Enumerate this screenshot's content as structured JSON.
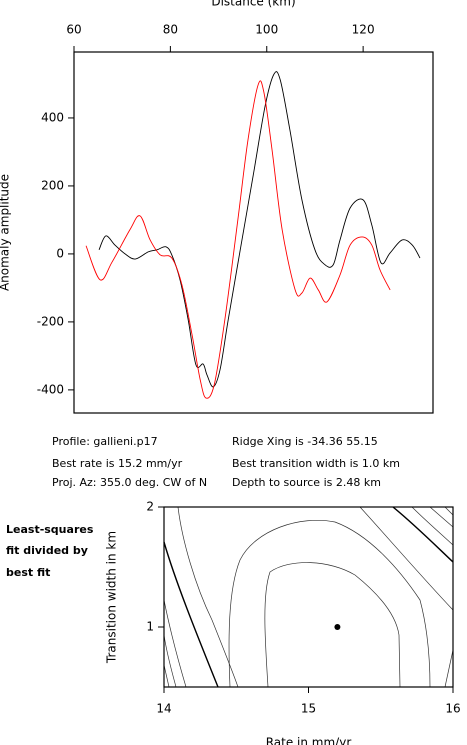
{
  "chart_data": [
    {
      "type": "line",
      "xlabel": "Distance (km)",
      "ylabel": "Anomaly amplitude",
      "xlim": [
        60,
        134.5
      ],
      "ylim": [
        -468,
        594
      ],
      "xticks": [
        60,
        80,
        100,
        120
      ],
      "yticks": [
        -400,
        -200,
        0,
        200,
        400
      ],
      "series": [
        {
          "color": "#000000",
          "x": [
            65.2,
            66.6,
            68.5,
            70.6,
            72.7,
            75.4,
            77.2,
            79.1,
            80.3,
            82,
            83.7,
            85.3,
            86.8,
            87.6,
            88.9,
            90.3,
            92,
            94.5,
            97.2,
            99.7,
            101.5,
            102.8,
            104.8,
            107.3,
            110,
            112.1,
            113.8,
            115.2,
            117.3,
            120,
            121.8,
            123.7,
            125.6,
            128.1,
            130.2,
            131.8
          ],
          "values": [
            12,
            53,
            26,
            0,
            -15,
            6,
            12,
            21,
            -3,
            -76,
            -194,
            -326,
            -324,
            -356,
            -391,
            -341,
            -194,
            12,
            232,
            438,
            529,
            512,
            365,
            159,
            12,
            -32,
            -32,
            41,
            135,
            159,
            85,
            -26,
            3,
            41,
            26,
            -12
          ]
        },
        {
          "color": "#ff0000",
          "x": [
            62.5,
            65.4,
            67.9,
            71.6,
            73.7,
            75.8,
            77.9,
            80.3,
            82.4,
            84.5,
            86.2,
            87.4,
            89.1,
            91.3,
            94,
            96.1,
            98.2,
            99.4,
            101.1,
            103.2,
            105.9,
            107.3,
            109,
            110.7,
            112.5,
            115.2,
            117.3,
            119.8,
            121.8,
            123.5,
            125.6
          ],
          "values": [
            24,
            -76,
            -24,
            71,
            112,
            41,
            -3,
            -12,
            -91,
            -238,
            -371,
            -424,
            -385,
            -194,
            100,
            335,
            497,
            476,
            306,
            71,
            -106,
            -115,
            -71,
            -106,
            -141,
            -62,
            26,
            50,
            26,
            -47,
            -106
          ]
        }
      ]
    },
    {
      "type": "scatter",
      "xlabel": "Rate in mm/yr",
      "ylabel": "Transition width in km",
      "xlim": [
        14,
        16
      ],
      "ylim": [
        0.5,
        2
      ],
      "xticks": [
        14,
        15,
        16
      ],
      "yticks": [
        1,
        2
      ],
      "series": [
        {
          "color": "#000000",
          "x": [
            15.2
          ],
          "values": [
            1
          ]
        }
      ]
    }
  ],
  "profile_info": [
    "Profile: gallieni.p17",
    "Ridge Xing is -34.36 55.15",
    "Best rate is 15.2 mm/yr",
    "Best transition width is 1.0 km",
    "Proj. Az: 355.0 deg. CW of N",
    "Depth to source is   2.48 km"
  ],
  "side_label": [
    "Least-squares",
    "fit divided by",
    "best fit"
  ]
}
